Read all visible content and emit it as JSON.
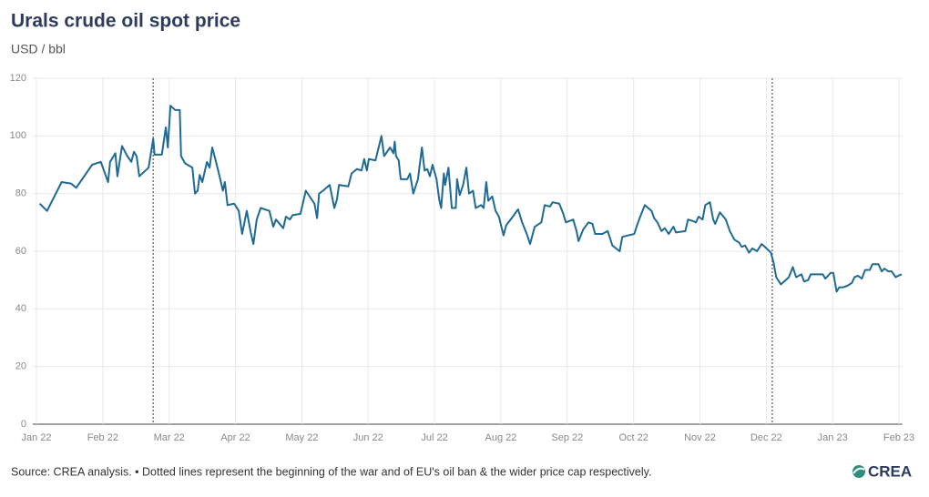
{
  "chart_data": {
    "type": "line",
    "title": "Urals crude oil spot price",
    "subtitle": "USD / bbl",
    "source": "Source: CREA analysis. • Dotted lines represent the beginning of the war and of EU's oil ban & the wider price cap respectively.",
    "logo": "CREA",
    "color": "#1f6a93",
    "grid": true,
    "xlim": [
      0,
      13.05
    ],
    "xticks": [
      {
        "value": 0,
        "label": "Jan 22"
      },
      {
        "value": 1,
        "label": "Feb 22"
      },
      {
        "value": 2,
        "label": "Mar 22"
      },
      {
        "value": 3,
        "label": "Apr 22"
      },
      {
        "value": 4,
        "label": "May 22"
      },
      {
        "value": 5,
        "label": "Jun 22"
      },
      {
        "value": 6,
        "label": "Jul 22"
      },
      {
        "value": 7,
        "label": "Aug 22"
      },
      {
        "value": 8,
        "label": "Sep 22"
      },
      {
        "value": 9,
        "label": "Oct 22"
      },
      {
        "value": 10,
        "label": "Nov 22"
      },
      {
        "value": 11,
        "label": "Dec 22"
      },
      {
        "value": 12,
        "label": "Jan 23"
      },
      {
        "value": 13,
        "label": "Feb 23"
      }
    ],
    "ylim": [
      0,
      120
    ],
    "yticks": [
      0,
      20,
      40,
      60,
      80,
      100,
      120
    ],
    "event_lines": [
      1.76,
      11.09
    ],
    "x": [
      0.05,
      0.16,
      0.38,
      0.52,
      0.6,
      0.84,
      0.97,
      1.08,
      1.11,
      1.19,
      1.22,
      1.29,
      1.37,
      1.43,
      1.47,
      1.51,
      1.55,
      1.69,
      1.76,
      1.78,
      1.89,
      1.95,
      1.98,
      2.02,
      2.09,
      2.16,
      2.18,
      2.24,
      2.35,
      2.39,
      2.43,
      2.46,
      2.5,
      2.57,
      2.61,
      2.65,
      2.69,
      2.76,
      2.81,
      2.84,
      2.88,
      2.98,
      3.05,
      3.1,
      3.17,
      3.23,
      3.27,
      3.32,
      3.38,
      3.51,
      3.57,
      3.61,
      3.72,
      3.76,
      3.82,
      3.86,
      3.98,
      4.06,
      4.19,
      4.23,
      4.26,
      4.32,
      4.42,
      4.49,
      4.53,
      4.56,
      4.7,
      4.75,
      4.83,
      4.9,
      4.94,
      4.98,
      5.01,
      5.11,
      5.2,
      5.24,
      5.33,
      5.38,
      5.4,
      5.42,
      5.46,
      5.49,
      5.59,
      5.63,
      5.68,
      5.75,
      5.81,
      5.85,
      5.89,
      5.93,
      5.97,
      6.03,
      6.07,
      6.1,
      6.14,
      6.16,
      6.21,
      6.26,
      6.32,
      6.34,
      6.38,
      6.43,
      6.48,
      6.52,
      6.58,
      6.62,
      6.7,
      6.74,
      6.78,
      6.81,
      6.87,
      6.92,
      6.97,
      7.04,
      7.08,
      7.18,
      7.24,
      7.26,
      7.32,
      7.39,
      7.44,
      7.51,
      7.61,
      7.66,
      7.74,
      7.78,
      7.88,
      7.94,
      7.98,
      8.09,
      8.14,
      8.17,
      8.24,
      8.32,
      8.38,
      8.42,
      8.53,
      8.61,
      8.68,
      8.79,
      8.83,
      8.92,
      9.01,
      9.06,
      9.1,
      9.17,
      9.27,
      9.31,
      9.36,
      9.42,
      9.47,
      9.53,
      9.6,
      9.64,
      9.78,
      9.82,
      9.89,
      9.94,
      9.98,
      10.04,
      10.08,
      10.15,
      10.2,
      10.23,
      10.3,
      10.39,
      10.45,
      10.52,
      10.59,
      10.63,
      10.68,
      10.74,
      10.79,
      10.86,
      10.93,
      10.98,
      11.07,
      11.11,
      11.15,
      11.22,
      11.27,
      11.34,
      11.4,
      11.45,
      11.53,
      11.57,
      11.63,
      11.67,
      11.77,
      11.85,
      11.89,
      11.97,
      12.01,
      12.06,
      12.1,
      12.16,
      12.22,
      12.29,
      12.33,
      12.38,
      12.44,
      12.49,
      12.56,
      12.6,
      12.69,
      12.74,
      12.78,
      12.84,
      12.89,
      12.95,
      12.99,
      13.04
    ],
    "values": [
      76.5,
      74,
      84,
      83.5,
      82,
      90,
      91,
      84,
      91,
      94,
      86,
      96.5,
      93,
      91,
      94.5,
      93,
      86,
      89,
      99,
      93.5,
      93.5,
      103,
      96,
      110.5,
      109,
      109,
      93,
      90.5,
      89,
      80,
      81,
      86.5,
      84,
      91,
      89,
      96,
      92.5,
      86,
      81,
      84,
      76,
      76.5,
      74,
      66,
      74,
      66.5,
      62.5,
      71,
      75,
      74,
      68.5,
      71,
      68,
      72,
      71,
      72.5,
      73,
      81,
      76.5,
      71.5,
      80,
      81,
      83,
      75,
      78,
      83,
      82.5,
      87,
      88.5,
      88,
      92,
      88,
      92,
      91.5,
      100,
      93,
      96,
      94,
      98,
      93,
      91.5,
      85,
      85,
      87,
      80,
      85,
      96,
      88,
      88.5,
      86,
      90,
      85,
      78,
      75,
      87,
      83,
      89,
      75,
      75,
      85,
      79.5,
      83,
      89,
      80,
      81,
      75,
      76,
      75,
      84,
      77.5,
      79,
      74,
      72,
      65.5,
      69,
      72,
      74,
      74.5,
      70,
      66,
      62.5,
      68.5,
      70,
      76,
      75.5,
      77,
      76.5,
      73,
      70,
      71,
      67,
      63.5,
      67.5,
      70,
      69.5,
      66,
      66,
      67,
      62,
      60,
      65,
      65.5,
      66,
      69.5,
      72,
      76,
      74,
      71.5,
      70,
      67,
      68,
      66,
      68.5,
      66.5,
      67,
      71,
      70.5,
      70,
      72,
      71,
      76,
      77,
      71,
      69.5,
      73.5,
      71,
      67,
      64,
      63,
      61.5,
      62,
      59.5,
      61,
      60,
      62.5,
      61.5,
      59.5,
      56,
      51,
      48.5,
      49.5,
      51,
      54.5,
      51,
      52,
      49.5,
      50,
      52,
      52,
      52,
      50.5,
      52.5,
      52.5,
      46,
      47.5,
      47.5,
      48,
      49,
      51,
      51.5,
      50.5,
      53.5,
      53.5,
      55.5,
      55.5,
      53,
      54,
      53,
      53,
      51,
      51.5,
      52
    ]
  }
}
